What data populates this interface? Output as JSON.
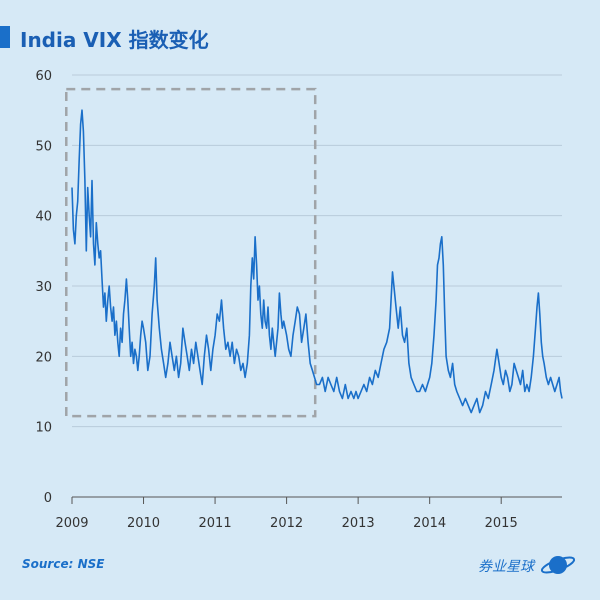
{
  "header": {
    "title": "India VIX 指数变化",
    "source": "Source: NSE",
    "brand": "券业星球"
  },
  "colors": {
    "line": "#1a6fc9",
    "grid": "#b9cbdb",
    "highlight_box": "#a0a4a8",
    "background": "#d6e9f6"
  },
  "icons": [
    "planet-logo-icon"
  ],
  "chart_data": {
    "type": "line",
    "title": "India VIX 指数变化",
    "xlabel": "",
    "ylabel": "",
    "xlim": [
      2009.0,
      2015.85
    ],
    "ylim": [
      0,
      60
    ],
    "y_ticks": [
      0,
      10,
      20,
      30,
      40,
      50,
      60
    ],
    "x_ticks": [
      2009,
      2010,
      2011,
      2012,
      2013,
      2014,
      2015
    ],
    "grid": true,
    "highlight_region": {
      "x": [
        2008.92,
        2012.4
      ],
      "y": [
        11.5,
        58
      ]
    },
    "series": [
      {
        "points": [
          [
            2009.0,
            44
          ],
          [
            2009.02,
            38
          ],
          [
            2009.04,
            36
          ],
          [
            2009.06,
            40
          ],
          [
            2009.08,
            42
          ],
          [
            2009.1,
            48
          ],
          [
            2009.12,
            53
          ],
          [
            2009.14,
            55
          ],
          [
            2009.16,
            52
          ],
          [
            2009.18,
            45
          ],
          [
            2009.2,
            35
          ],
          [
            2009.22,
            44
          ],
          [
            2009.24,
            40
          ],
          [
            2009.26,
            37
          ],
          [
            2009.28,
            45
          ],
          [
            2009.3,
            36
          ],
          [
            2009.32,
            33
          ],
          [
            2009.34,
            39
          ],
          [
            2009.36,
            36
          ],
          [
            2009.38,
            34
          ],
          [
            2009.4,
            35
          ],
          [
            2009.42,
            31
          ],
          [
            2009.44,
            27
          ],
          [
            2009.46,
            29
          ],
          [
            2009.48,
            25
          ],
          [
            2009.5,
            28
          ],
          [
            2009.52,
            30
          ],
          [
            2009.54,
            27
          ],
          [
            2009.56,
            25
          ],
          [
            2009.58,
            27
          ],
          [
            2009.6,
            23
          ],
          [
            2009.62,
            25
          ],
          [
            2009.64,
            22
          ],
          [
            2009.66,
            20
          ],
          [
            2009.68,
            24
          ],
          [
            2009.7,
            22
          ],
          [
            2009.72,
            26
          ],
          [
            2009.74,
            28
          ],
          [
            2009.76,
            31
          ],
          [
            2009.78,
            28
          ],
          [
            2009.8,
            24
          ],
          [
            2009.82,
            20
          ],
          [
            2009.84,
            22
          ],
          [
            2009.86,
            19
          ],
          [
            2009.88,
            21
          ],
          [
            2009.9,
            20
          ],
          [
            2009.92,
            18
          ],
          [
            2009.94,
            20
          ],
          [
            2009.96,
            23
          ],
          [
            2009.98,
            25
          ],
          [
            2010.0,
            24
          ],
          [
            2010.03,
            22
          ],
          [
            2010.06,
            18
          ],
          [
            2010.09,
            20
          ],
          [
            2010.12,
            26
          ],
          [
            2010.15,
            30
          ],
          [
            2010.17,
            34
          ],
          [
            2010.19,
            28
          ],
          [
            2010.22,
            24
          ],
          [
            2010.25,
            21
          ],
          [
            2010.28,
            19
          ],
          [
            2010.31,
            17
          ],
          [
            2010.34,
            19
          ],
          [
            2010.37,
            22
          ],
          [
            2010.4,
            20
          ],
          [
            2010.43,
            18
          ],
          [
            2010.46,
            20
          ],
          [
            2010.49,
            17
          ],
          [
            2010.52,
            19
          ],
          [
            2010.55,
            24
          ],
          [
            2010.58,
            22
          ],
          [
            2010.61,
            20
          ],
          [
            2010.64,
            18
          ],
          [
            2010.67,
            21
          ],
          [
            2010.7,
            19
          ],
          [
            2010.73,
            22
          ],
          [
            2010.76,
            20
          ],
          [
            2010.79,
            18
          ],
          [
            2010.82,
            16
          ],
          [
            2010.85,
            20
          ],
          [
            2010.88,
            23
          ],
          [
            2010.91,
            21
          ],
          [
            2010.94,
            18
          ],
          [
            2010.97,
            21
          ],
          [
            2011.0,
            23
          ],
          [
            2011.03,
            26
          ],
          [
            2011.06,
            25
          ],
          [
            2011.09,
            28
          ],
          [
            2011.12,
            24
          ],
          [
            2011.15,
            21
          ],
          [
            2011.18,
            22
          ],
          [
            2011.21,
            20
          ],
          [
            2011.24,
            22
          ],
          [
            2011.27,
            19
          ],
          [
            2011.3,
            21
          ],
          [
            2011.33,
            20
          ],
          [
            2011.36,
            18
          ],
          [
            2011.39,
            19
          ],
          [
            2011.42,
            17
          ],
          [
            2011.45,
            19
          ],
          [
            2011.48,
            23
          ],
          [
            2011.5,
            30
          ],
          [
            2011.52,
            34
          ],
          [
            2011.54,
            31
          ],
          [
            2011.56,
            37
          ],
          [
            2011.58,
            33
          ],
          [
            2011.6,
            28
          ],
          [
            2011.62,
            30
          ],
          [
            2011.64,
            26
          ],
          [
            2011.66,
            24
          ],
          [
            2011.68,
            28
          ],
          [
            2011.7,
            25
          ],
          [
            2011.72,
            24
          ],
          [
            2011.74,
            27
          ],
          [
            2011.76,
            23
          ],
          [
            2011.78,
            21
          ],
          [
            2011.8,
            24
          ],
          [
            2011.82,
            22
          ],
          [
            2011.84,
            20
          ],
          [
            2011.86,
            22
          ],
          [
            2011.88,
            24
          ],
          [
            2011.9,
            29
          ],
          [
            2011.92,
            26
          ],
          [
            2011.94,
            24
          ],
          [
            2011.96,
            25
          ],
          [
            2012.0,
            23
          ],
          [
            2012.03,
            21
          ],
          [
            2012.06,
            20
          ],
          [
            2012.09,
            23
          ],
          [
            2012.12,
            25
          ],
          [
            2012.15,
            27
          ],
          [
            2012.18,
            26
          ],
          [
            2012.21,
            22
          ],
          [
            2012.24,
            24
          ],
          [
            2012.27,
            26
          ],
          [
            2012.3,
            22
          ],
          [
            2012.33,
            19
          ],
          [
            2012.36,
            18
          ],
          [
            2012.39,
            17
          ],
          [
            2012.42,
            16
          ],
          [
            2012.46,
            16
          ],
          [
            2012.5,
            17
          ],
          [
            2012.54,
            15
          ],
          [
            2012.58,
            17
          ],
          [
            2012.62,
            16
          ],
          [
            2012.66,
            15
          ],
          [
            2012.7,
            17
          ],
          [
            2012.74,
            15
          ],
          [
            2012.78,
            14
          ],
          [
            2012.82,
            16
          ],
          [
            2012.86,
            14
          ],
          [
            2012.9,
            15
          ],
          [
            2012.94,
            14
          ],
          [
            2012.97,
            15
          ],
          [
            2013.0,
            14
          ],
          [
            2013.04,
            15
          ],
          [
            2013.08,
            16
          ],
          [
            2013.12,
            15
          ],
          [
            2013.16,
            17
          ],
          [
            2013.2,
            16
          ],
          [
            2013.24,
            18
          ],
          [
            2013.28,
            17
          ],
          [
            2013.32,
            19
          ],
          [
            2013.36,
            21
          ],
          [
            2013.4,
            22
          ],
          [
            2013.44,
            24
          ],
          [
            2013.48,
            32
          ],
          [
            2013.5,
            30
          ],
          [
            2013.53,
            27
          ],
          [
            2013.56,
            24
          ],
          [
            2013.59,
            27
          ],
          [
            2013.62,
            23
          ],
          [
            2013.65,
            22
          ],
          [
            2013.68,
            24
          ],
          [
            2013.71,
            19
          ],
          [
            2013.74,
            17
          ],
          [
            2013.78,
            16
          ],
          [
            2013.82,
            15
          ],
          [
            2013.86,
            15
          ],
          [
            2013.9,
            16
          ],
          [
            2013.94,
            15
          ],
          [
            2013.97,
            16
          ],
          [
            2014.0,
            17
          ],
          [
            2014.03,
            19
          ],
          [
            2014.06,
            23
          ],
          [
            2014.09,
            28
          ],
          [
            2014.11,
            33
          ],
          [
            2014.13,
            34
          ],
          [
            2014.15,
            36
          ],
          [
            2014.17,
            37
          ],
          [
            2014.19,
            33
          ],
          [
            2014.21,
            26
          ],
          [
            2014.23,
            20
          ],
          [
            2014.26,
            18
          ],
          [
            2014.29,
            17
          ],
          [
            2014.32,
            19
          ],
          [
            2014.35,
            16
          ],
          [
            2014.38,
            15
          ],
          [
            2014.42,
            14
          ],
          [
            2014.46,
            13
          ],
          [
            2014.5,
            14
          ],
          [
            2014.54,
            13
          ],
          [
            2014.58,
            12
          ],
          [
            2014.62,
            13
          ],
          [
            2014.66,
            14
          ],
          [
            2014.7,
            12
          ],
          [
            2014.74,
            13
          ],
          [
            2014.78,
            15
          ],
          [
            2014.82,
            14
          ],
          [
            2014.86,
            16
          ],
          [
            2014.9,
            18
          ],
          [
            2014.94,
            21
          ],
          [
            2014.97,
            19
          ],
          [
            2015.0,
            17
          ],
          [
            2015.03,
            16
          ],
          [
            2015.06,
            18
          ],
          [
            2015.09,
            17
          ],
          [
            2015.12,
            15
          ],
          [
            2015.15,
            16
          ],
          [
            2015.18,
            19
          ],
          [
            2015.21,
            18
          ],
          [
            2015.24,
            17
          ],
          [
            2015.27,
            16
          ],
          [
            2015.3,
            18
          ],
          [
            2015.33,
            15
          ],
          [
            2015.36,
            16
          ],
          [
            2015.39,
            15
          ],
          [
            2015.42,
            17
          ],
          [
            2015.45,
            20
          ],
          [
            2015.48,
            24
          ],
          [
            2015.5,
            27
          ],
          [
            2015.52,
            29
          ],
          [
            2015.54,
            26
          ],
          [
            2015.56,
            22
          ],
          [
            2015.58,
            20
          ],
          [
            2015.6,
            19
          ],
          [
            2015.63,
            17
          ],
          [
            2015.66,
            16
          ],
          [
            2015.69,
            17
          ],
          [
            2015.72,
            16
          ],
          [
            2015.75,
            15
          ],
          [
            2015.78,
            16
          ],
          [
            2015.81,
            17
          ],
          [
            2015.83,
            15
          ],
          [
            2015.85,
            14
          ]
        ]
      }
    ]
  }
}
